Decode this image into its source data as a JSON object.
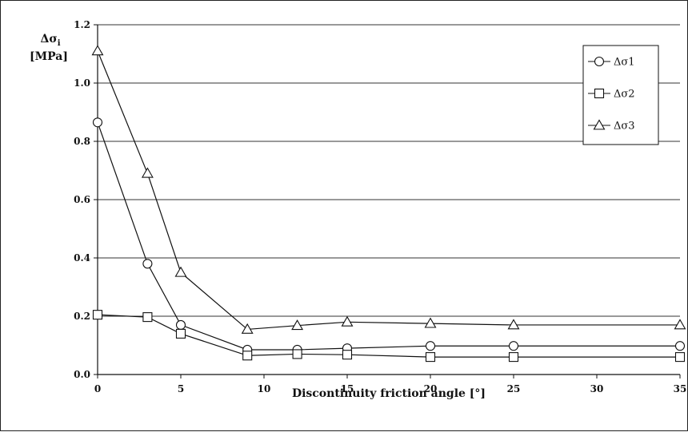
{
  "chart_data": {
    "type": "line",
    "title": "",
    "xlabel": "Discontinuity friction angle [°]",
    "ylabel_line1": "Δσ",
    "ylabel_sub": "i",
    "ylabel_line2": "[MPa]",
    "xlim": [
      0,
      35
    ],
    "ylim": [
      0.0,
      1.2
    ],
    "xticks": [
      0,
      5,
      10,
      15,
      20,
      25,
      30,
      35
    ],
    "yticks": [
      0.0,
      0.2,
      0.4,
      0.6,
      0.8,
      1.0,
      1.2
    ],
    "ytick_labels": [
      "0.0",
      "0.2",
      "0.4",
      "0.6",
      "0.8",
      "1.0",
      "1.2"
    ],
    "grid": "horizontal",
    "legend_position": "top-right",
    "series": [
      {
        "name": "Δσ1",
        "marker": "circle",
        "x": [
          0,
          3,
          5,
          9,
          12,
          15,
          20,
          25,
          35
        ],
        "y": [
          0.865,
          0.38,
          0.17,
          0.085,
          0.085,
          0.09,
          0.098,
          0.098,
          0.098
        ]
      },
      {
        "name": "Δσ2",
        "marker": "square",
        "x": [
          0,
          3,
          5,
          9,
          12,
          15,
          20,
          25,
          35
        ],
        "y": [
          0.205,
          0.197,
          0.14,
          0.065,
          0.07,
          0.068,
          0.06,
          0.06,
          0.06
        ]
      },
      {
        "name": "Δσ3",
        "marker": "triangle",
        "x": [
          0,
          3,
          5,
          9,
          12,
          15,
          20,
          25,
          35
        ],
        "y": [
          1.11,
          0.69,
          0.35,
          0.155,
          0.168,
          0.18,
          0.175,
          0.17,
          0.17
        ]
      }
    ]
  }
}
